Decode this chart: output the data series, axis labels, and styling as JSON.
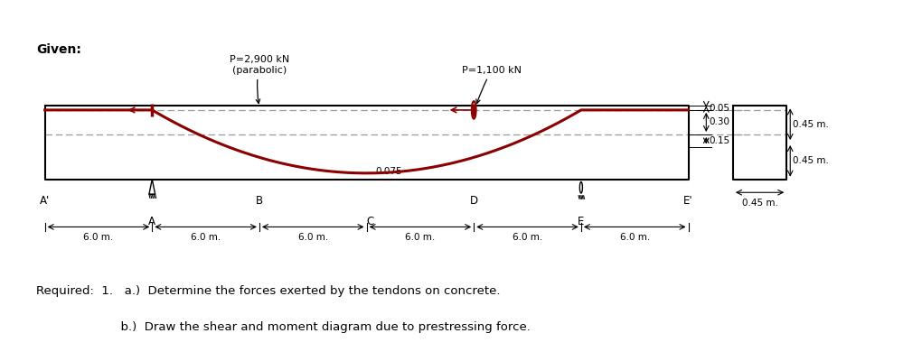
{
  "bg_color": "#ffffff",
  "beam_color": "#000000",
  "tendon_color": "#8B0000",
  "dash_color": "#999999",
  "figsize": [
    9.99,
    4.0
  ],
  "dpi": 100,
  "P1_label": "P=2,900 kN\n(parabolic)",
  "P2_label": "P=1,100 kN",
  "point_labels": [
    "A'",
    "A",
    "B",
    "C",
    "D",
    "E",
    "E'"
  ],
  "span_label": "6.0 m.",
  "num_spans": 6,
  "ecc_labels": [
    "0.05",
    "0.30",
    "0.15"
  ],
  "cs_dims": [
    "0.45 m.",
    "0.45 m.",
    "0.45 m."
  ],
  "bottom_ecc_label": "0.075",
  "required_text_a": "Required:  1.   a.)  Determine the forces exerted by the tendons on concrete.",
  "required_text_b": "                      b.)  Draw the shear and moment diagram due to prestressing force.",
  "given_label": "Given:"
}
